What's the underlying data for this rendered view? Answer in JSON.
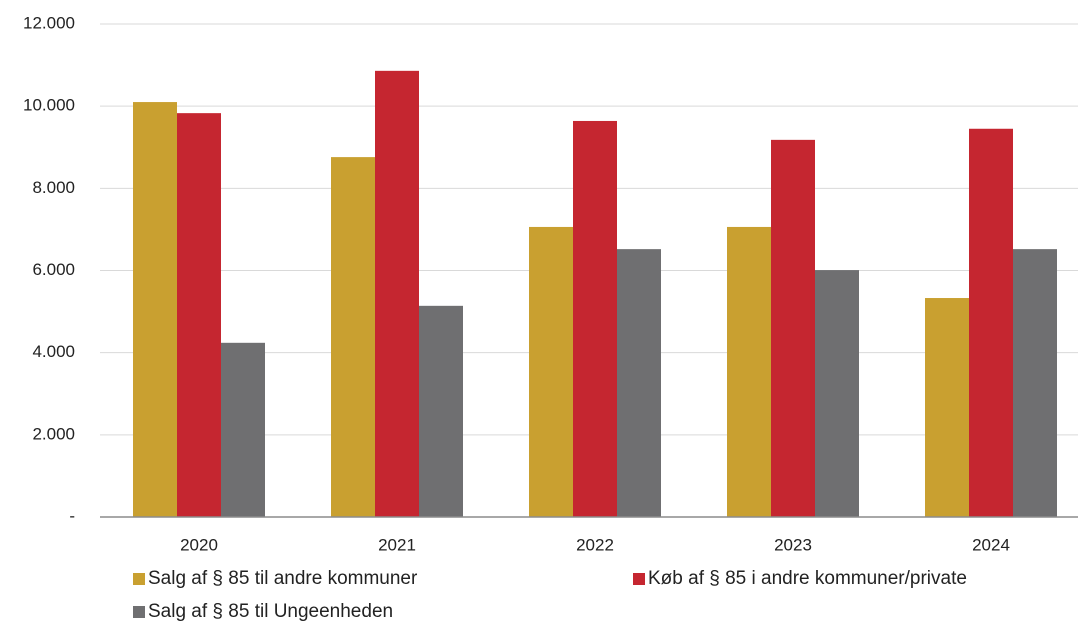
{
  "chart_data": {
    "type": "bar",
    "categories": [
      "2020",
      "2021",
      "2022",
      "2023",
      "2024"
    ],
    "series": [
      {
        "name": "Salg af § 85 til andre kommuner",
        "color": "#c9a030",
        "values": [
          10100,
          8760,
          7060,
          7060,
          5330
        ]
      },
      {
        "name": "Køb af § 85 i andre kommuner/private",
        "color": "#c52630",
        "values": [
          9830,
          10860,
          9640,
          9180,
          9450
        ]
      },
      {
        "name": "Salg af § 85 til Ungeenheden",
        "color": "#6f6f71",
        "values": [
          4240,
          5140,
          6520,
          6010,
          6520
        ]
      }
    ],
    "ylim": [
      0,
      12000
    ],
    "yticks": [
      {
        "value": 0,
        "label": "-"
      },
      {
        "value": 2000,
        "label": "2.000"
      },
      {
        "value": 4000,
        "label": "4.000"
      },
      {
        "value": 6000,
        "label": "6.000"
      },
      {
        "value": 8000,
        "label": "8.000"
      },
      {
        "value": 10000,
        "label": "10.000"
      },
      {
        "value": 12000,
        "label": "12.000"
      }
    ],
    "grid": true
  }
}
